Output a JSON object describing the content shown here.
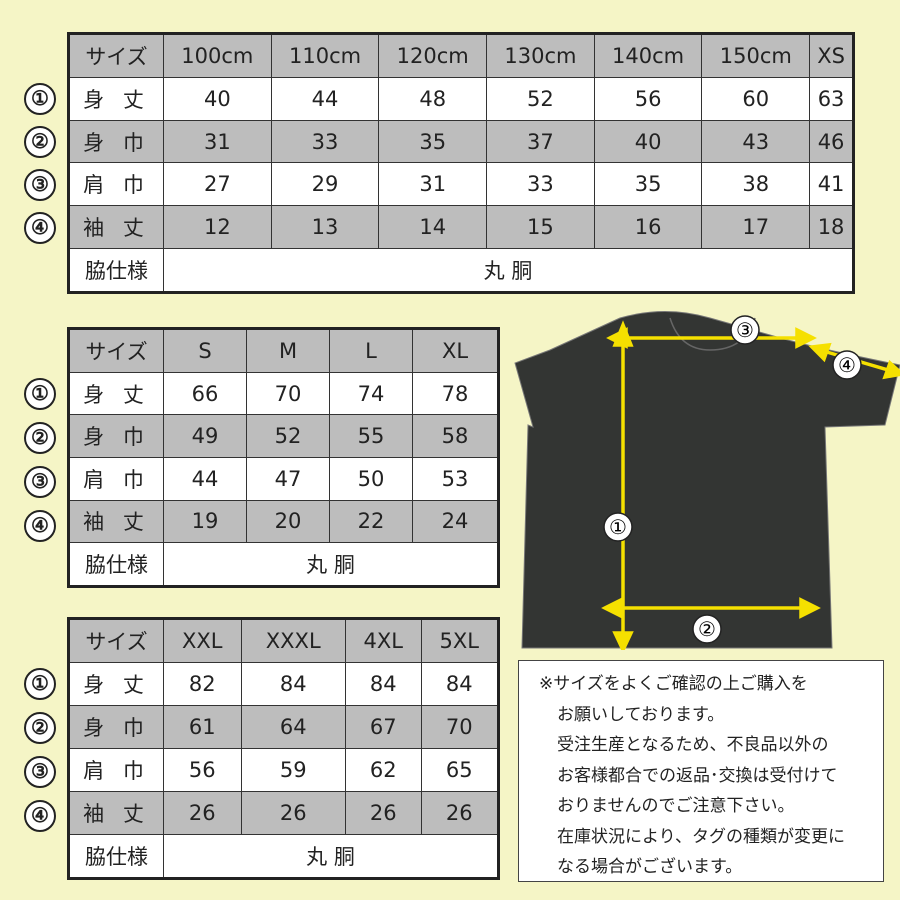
{
  "row_labels": {
    "size": "サイズ",
    "length": "身 丈",
    "width": "身 巾",
    "shoulder": "肩 巾",
    "sleeve": "袖 丈",
    "side": "脇仕様"
  },
  "markers": [
    "①",
    "②",
    "③",
    "④"
  ],
  "side_spec": "丸 胴",
  "tables": [
    {
      "sizes": [
        "100cm",
        "110cm",
        "120cm",
        "130cm",
        "140cm",
        "150cm",
        "XS"
      ],
      "rows": [
        [
          "40",
          "44",
          "48",
          "52",
          "56",
          "60",
          "63"
        ],
        [
          "31",
          "33",
          "35",
          "37",
          "40",
          "43",
          "46"
        ],
        [
          "27",
          "29",
          "31",
          "33",
          "35",
          "38",
          "41"
        ],
        [
          "12",
          "13",
          "14",
          "15",
          "16",
          "17",
          "18"
        ]
      ]
    },
    {
      "sizes": [
        "S",
        "M",
        "L",
        "XL"
      ],
      "rows": [
        [
          "66",
          "70",
          "74",
          "78"
        ],
        [
          "49",
          "52",
          "55",
          "58"
        ],
        [
          "44",
          "47",
          "50",
          "53"
        ],
        [
          "19",
          "20",
          "22",
          "24"
        ]
      ]
    },
    {
      "sizes": [
        "XXL",
        "XXXL",
        "4XL",
        "5XL"
      ],
      "rows": [
        [
          "82",
          "84",
          "84",
          "84"
        ],
        [
          "61",
          "64",
          "67",
          "70"
        ],
        [
          "56",
          "59",
          "62",
          "65"
        ],
        [
          "26",
          "26",
          "26",
          "26"
        ]
      ]
    }
  ],
  "notes": [
    "※サイズをよくご確認の上ご購入を",
    "お願いしております。",
    "受注生産となるため、不良品以外の",
    "お客様都合での返品･交換は受付けて",
    "おりませんのでご注意下さい。",
    "在庫状況により、タグの種類が変更に",
    "なる場合がございます。"
  ],
  "colors": {
    "background": "#f5f5c6",
    "header_gray": "#bdbdbd",
    "shirt": "#333533",
    "arrow": "#f5e000"
  }
}
